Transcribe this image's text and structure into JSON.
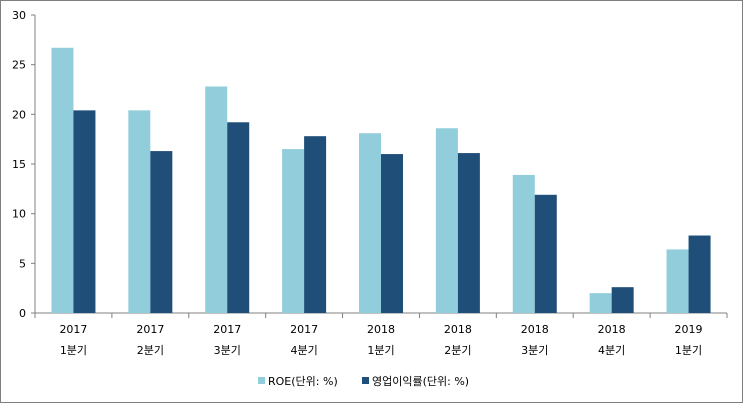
{
  "chart_data": {
    "type": "bar",
    "categories": [
      [
        "2017",
        "1분기"
      ],
      [
        "2017",
        "2분기"
      ],
      [
        "2017",
        "3분기"
      ],
      [
        "2017",
        "4분기"
      ],
      [
        "2018",
        "1분기"
      ],
      [
        "2018",
        "2분기"
      ],
      [
        "2018",
        "3분기"
      ],
      [
        "2018",
        "4분기"
      ],
      [
        "2019",
        "1분기"
      ]
    ],
    "series": [
      {
        "name": "ROE(단위: %)",
        "color": "#92cddc",
        "values": [
          26.7,
          20.4,
          22.8,
          16.5,
          18.1,
          18.6,
          13.9,
          2.0,
          6.4
        ]
      },
      {
        "name": "영업이익률(단위: %)",
        "color": "#1f4e79",
        "values": [
          20.4,
          16.3,
          19.2,
          17.8,
          16.0,
          16.1,
          11.9,
          2.6,
          7.8
        ]
      }
    ],
    "ylim": [
      0,
      30
    ],
    "yticks": [
      "0",
      "5",
      "10",
      "15",
      "20",
      "25",
      "30"
    ],
    "grid": false,
    "legend_position": "bottom"
  }
}
